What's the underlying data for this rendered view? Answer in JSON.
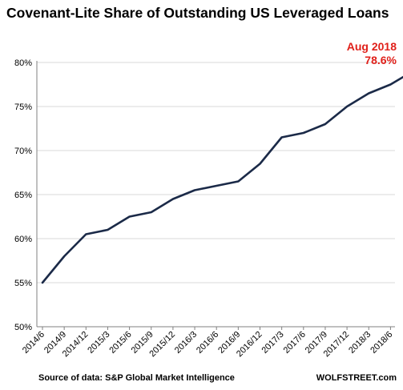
{
  "title": "Covenant-Lite Share of Outstanding US Leveraged Loans",
  "source": "Source of data: S&P Global Market Intelligence",
  "brand": "WOLFSTREET.com",
  "callout": {
    "line1": "Aug 2018",
    "line2": "78.6%"
  },
  "colors": {
    "line": "#1b2a48",
    "accent": "#e0201a",
    "grid": "#d9d9d9",
    "axis": "#808080"
  },
  "chart_data": {
    "type": "line",
    "title": "Covenant-Lite Share of Outstanding US Leveraged Loans",
    "xlabel": "",
    "ylabel": "",
    "ylim": [
      50,
      80
    ],
    "yticks": [
      50,
      55,
      60,
      65,
      70,
      75,
      80
    ],
    "ytick_labels": [
      "50%",
      "55%",
      "60%",
      "65%",
      "70%",
      "75%",
      "80%"
    ],
    "categories": [
      "2014/6",
      "2014/9",
      "2014/12",
      "2015/3",
      "2015/6",
      "2015/9",
      "2015/12",
      "2016/3",
      "2016/6",
      "2016/9",
      "2016/12",
      "2017/3",
      "2017/6",
      "2017/9",
      "2017/12",
      "2018/3",
      "2018/6",
      "2018/8"
    ],
    "tick_labels": [
      "2014/6",
      "2014/9",
      "2014/12",
      "2015/3",
      "2015/6",
      "2015/9",
      "2015/12",
      "2016/3",
      "2016/6",
      "2016/9",
      "2016/12",
      "2017/3",
      "2017/6",
      "2017/9",
      "2017/12",
      "2018/3",
      "2018/6"
    ],
    "values": [
      55.0,
      58.0,
      60.5,
      61.0,
      62.5,
      63.0,
      64.5,
      65.5,
      66.0,
      66.5,
      68.5,
      71.5,
      72.0,
      73.0,
      75.0,
      76.5,
      77.5,
      78.6
    ],
    "grid": "horizontal"
  }
}
